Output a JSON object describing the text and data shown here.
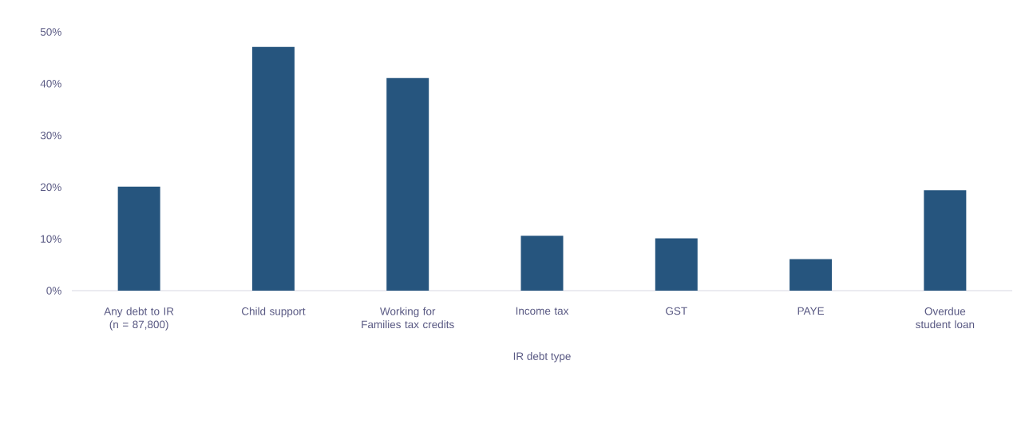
{
  "chart_data": {
    "type": "bar",
    "xlabel": "IR debt type",
    "categories": [
      "Any debt to IR (n = 87,800)",
      "Child support",
      "Working for Families tax credits",
      "Income tax",
      "GST",
      "PAYE",
      "Overdue student loan"
    ],
    "values": [
      20.1,
      47.1,
      41.1,
      10.6,
      10.1,
      6.1,
      19.4
    ],
    "color": "#26557e",
    "ylim": [
      0,
      50
    ],
    "yticks": [
      {
        "value": 0,
        "label": "0%"
      },
      {
        "value": 10,
        "label": "10%"
      },
      {
        "value": 20,
        "label": "20%"
      },
      {
        "value": 30,
        "label": "30%"
      },
      {
        "value": 40,
        "label": "40%"
      },
      {
        "value": 50,
        "label": "50%"
      }
    ]
  }
}
